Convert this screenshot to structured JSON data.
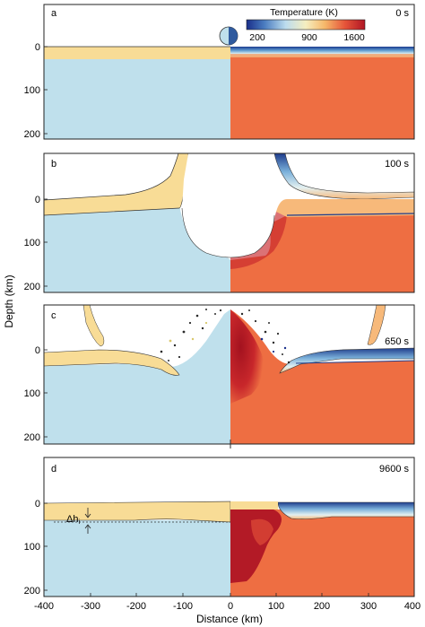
{
  "figure": {
    "y_axis_label": "Depth (km)",
    "x_axis_label": "Distance (km)",
    "x_ticks": [
      "-400",
      "-300",
      "-200",
      "-100",
      "0",
      "100",
      "200",
      "300",
      "400"
    ],
    "y_ticks": [
      "0",
      "100",
      "200"
    ],
    "colorbar": {
      "title": "Temperature (K)",
      "tick_labels": [
        "200",
        "900",
        "1600"
      ],
      "colors": [
        "#1a2f8a",
        "#4a7cc0",
        "#bcdcee",
        "#f5eec0",
        "#f6b86a",
        "#e6553a",
        "#b01524"
      ]
    },
    "panels": [
      {
        "letter": "a",
        "time": "0 s"
      },
      {
        "letter": "b",
        "time": "100 s"
      },
      {
        "letter": "c",
        "time": "650 s"
      },
      {
        "letter": "d",
        "time": "9600 s"
      }
    ],
    "annotation": "Δh",
    "annotation_sub": "i",
    "colors": {
      "ice_blue": "#bfe0ec",
      "crust_yellow": "#f8dc96",
      "mantle_red": "#ee6e42",
      "hot_red": "#b31a26"
    }
  }
}
